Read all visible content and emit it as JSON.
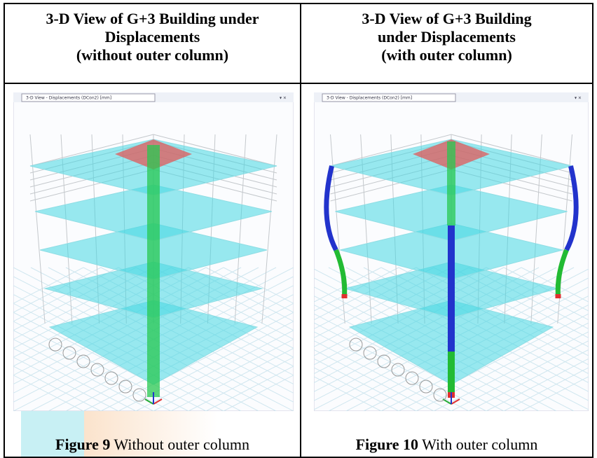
{
  "header": {
    "left": {
      "lines": [
        "3-D View of G+3 Building under",
        "Displacements",
        "(without outer column)"
      ]
    },
    "right": {
      "lines": [
        "3-D View of G+3 Building",
        "under Displacements",
        "(with outer column)"
      ]
    }
  },
  "figures": [
    {
      "window_title": "3-D View  - Displacements (DCon2)  [mm]",
      "caption": {
        "label": "Figure 9",
        "text": "Without outer column"
      }
    },
    {
      "window_title": "3-D View  - Displacements (DCon2)  [mm]",
      "caption": {
        "label": "Figure 10",
        "text": "With outer column"
      }
    }
  ]
}
